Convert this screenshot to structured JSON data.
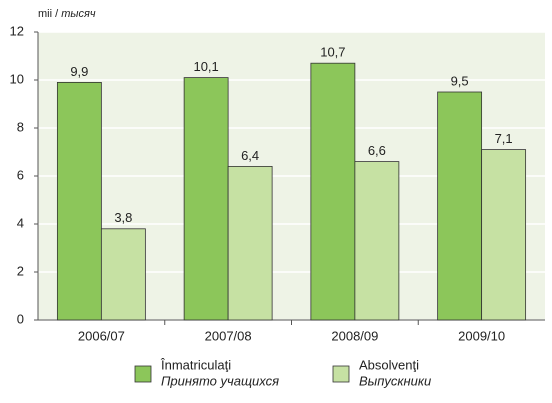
{
  "chart_data": {
    "type": "bar",
    "y_unit": [
      "mii /",
      "тысяч"
    ],
    "categories": [
      "2006/07",
      "2007/08",
      "2008/09",
      "2009/10"
    ],
    "series": [
      {
        "name": "Înmatriculaţi",
        "name_ru": "Принято учащихся",
        "color": "#8cc65a",
        "values": [
          9.9,
          10.1,
          10.7,
          9.5
        ],
        "value_labels": [
          "9,9",
          "10,1",
          "10,7",
          "9,5"
        ]
      },
      {
        "name": "Absolvenţi",
        "name_ru": "Выпускники",
        "color": "#c6e1a3",
        "values": [
          3.8,
          6.4,
          6.6,
          7.1
        ],
        "value_labels": [
          "3,8",
          "6,4",
          "6,6",
          "7,1"
        ]
      }
    ],
    "ylim": [
      0,
      12
    ],
    "yticks": [
      0,
      2,
      4,
      6,
      8,
      10,
      12
    ],
    "grid": true,
    "plot_background": "#eef3e6"
  }
}
